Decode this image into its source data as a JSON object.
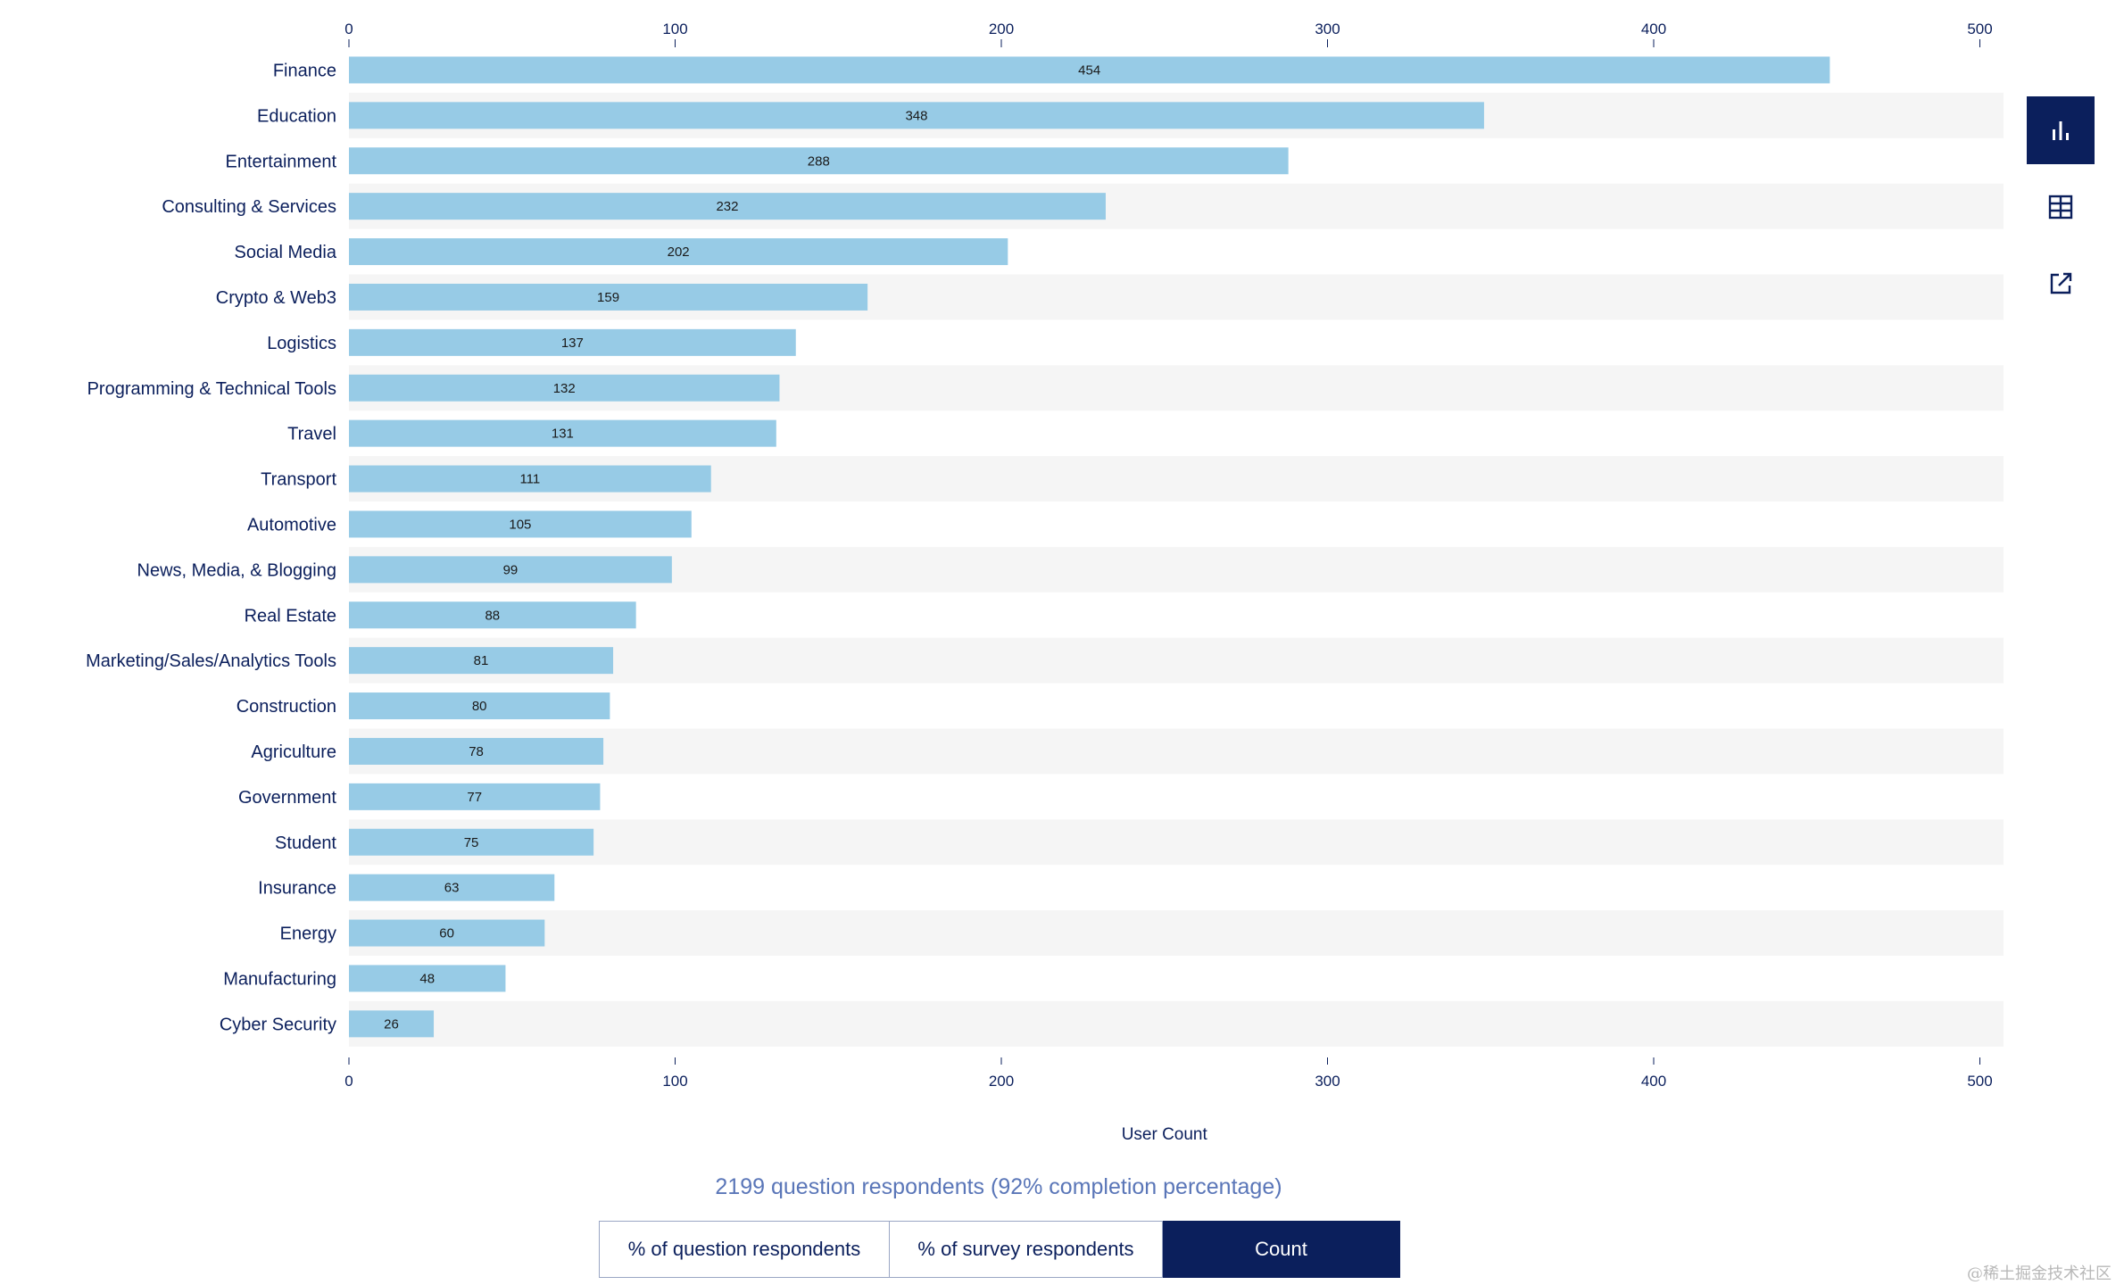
{
  "chart_data": {
    "type": "bar",
    "orientation": "horizontal",
    "categories": [
      "Finance",
      "Education",
      "Entertainment",
      "Consulting & Services",
      "Social Media",
      "Crypto & Web3",
      "Logistics",
      "Programming & Technical Tools",
      "Travel",
      "Transport",
      "Automotive",
      "News, Media, & Blogging",
      "Real Estate",
      "Marketing/Sales/Analytics Tools",
      "Construction",
      "Agriculture",
      "Government",
      "Student",
      "Insurance",
      "Energy",
      "Manufacturing",
      "Cyber Security"
    ],
    "values": [
      454,
      348,
      288,
      232,
      202,
      159,
      137,
      132,
      131,
      111,
      105,
      99,
      88,
      81,
      80,
      78,
      77,
      75,
      63,
      60,
      48,
      26
    ],
    "xlim": [
      0,
      500
    ],
    "xticks": [
      0,
      100,
      200,
      300,
      400,
      500
    ],
    "xlabel": "User Count",
    "bar_color": "#97cbe6",
    "stripe_color": "#f5f5f5"
  },
  "sidebar": {
    "buttons": [
      {
        "icon": "bar-chart-icon",
        "active": true
      },
      {
        "icon": "table-icon",
        "active": false
      },
      {
        "icon": "external-link-icon",
        "active": false
      }
    ]
  },
  "footer": {
    "respondents": "2199 question respondents (92% completion percentage)",
    "toggles": [
      {
        "label": "% of question respondents",
        "active": false
      },
      {
        "label": "% of survey respondents",
        "active": false
      },
      {
        "label": "Count",
        "active": true
      }
    ]
  },
  "watermark": "@稀土掘金技术社区",
  "colors": {
    "navy": "#0b1f5c",
    "subtitle": "#5a76b8"
  }
}
